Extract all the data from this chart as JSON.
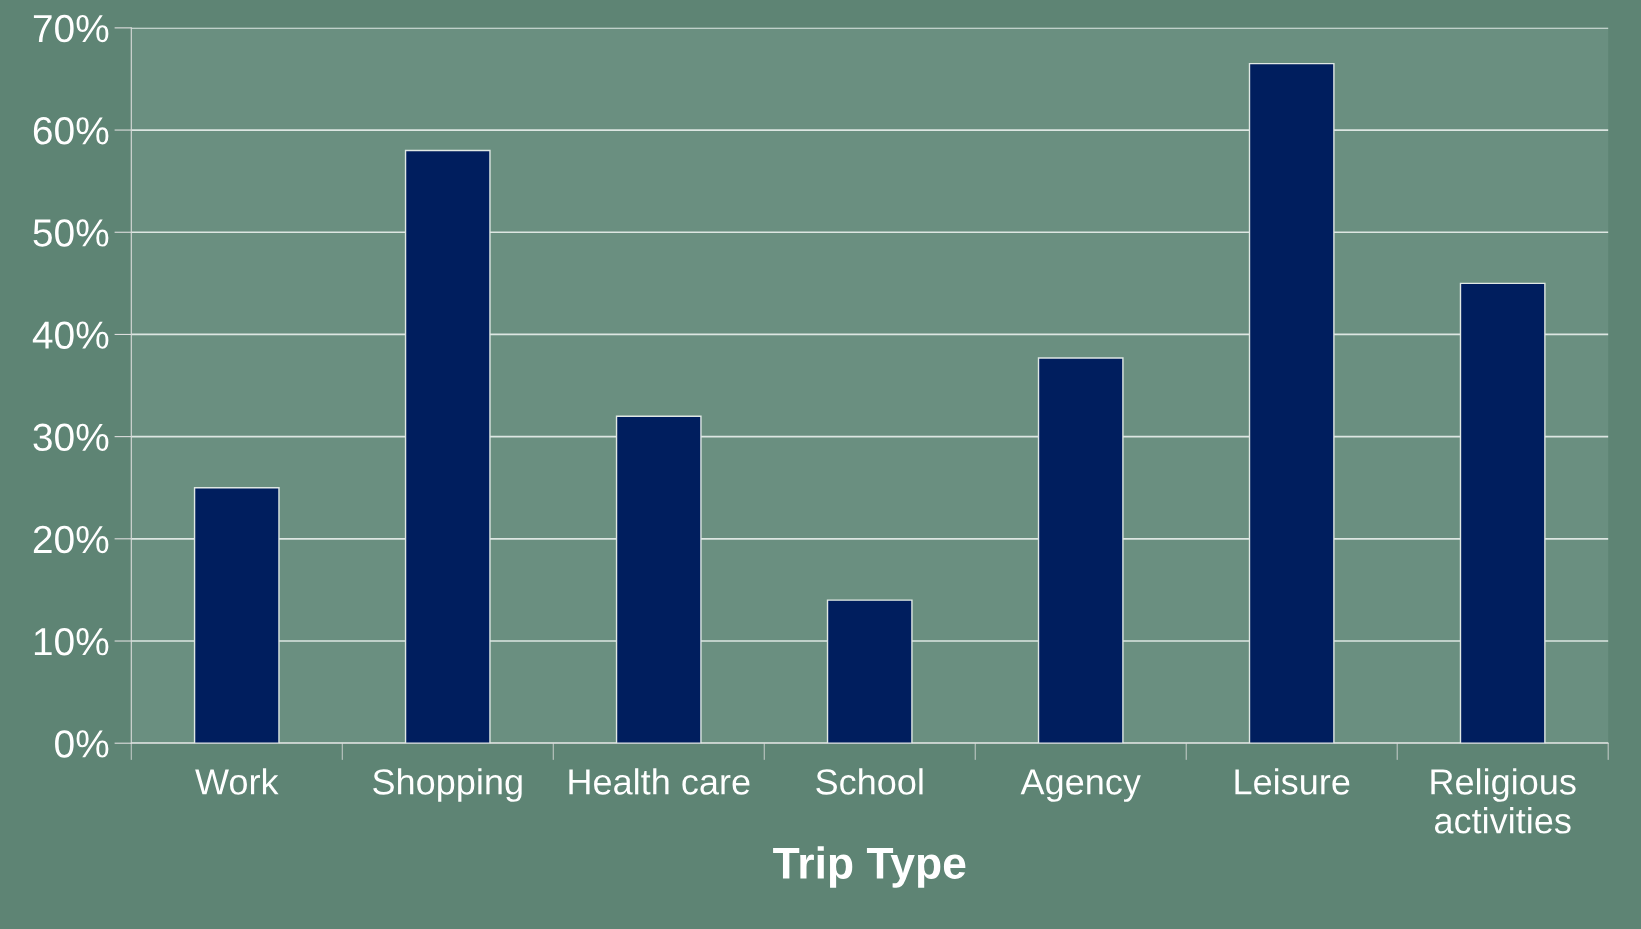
{
  "chart_data": {
    "type": "bar",
    "xlabel": "Trip Type",
    "categories": [
      "Work",
      "Shopping",
      "Health care",
      "School",
      "Agency",
      "Leisure",
      "Religious\nactivities"
    ],
    "values": [
      25,
      58,
      32,
      14,
      37.7,
      66.5,
      45
    ],
    "color": "#001e5e",
    "ylim": [
      0,
      70
    ],
    "yticks": [
      {
        "value": 0,
        "label": "0%"
      },
      {
        "value": 10,
        "label": "10%"
      },
      {
        "value": 20,
        "label": "20%"
      },
      {
        "value": 30,
        "label": "30%"
      },
      {
        "value": 40,
        "label": "40%"
      },
      {
        "value": 50,
        "label": "50%"
      },
      {
        "value": 60,
        "label": "60%"
      },
      {
        "value": 70,
        "label": "70%"
      }
    ],
    "grid": "y",
    "legend": false
  }
}
